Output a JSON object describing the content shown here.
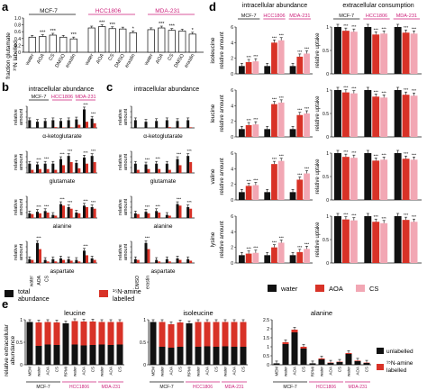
{
  "colors": {
    "total": "#111111",
    "labelled": "#d83227",
    "aoa": "#d83227",
    "cs": "#f2a7b4",
    "water": "#111111",
    "unlabelled": "#111111",
    "mcf": "#111111",
    "hcc": "#cc1f7a",
    "mda": "#cc1f7a"
  },
  "panels": {
    "a": {
      "letter": "a",
      "ylabel1": "fraction glutamate",
      "ylabel2": "¹⁵N labelled",
      "cells": [
        "MCF-7",
        "HCC1806",
        "MDA-231"
      ],
      "xticks": [
        "water",
        "AOA",
        "CS",
        "DMSO",
        "erastin"
      ],
      "ylim": [
        0,
        1.0
      ],
      "yticks": [
        "0",
        "0.2",
        "0.4",
        "0.6",
        "0.8",
        "1.0"
      ],
      "values": [
        [
          0.44,
          0.46,
          0.5,
          0.44,
          0.39
        ],
        [
          0.71,
          0.75,
          0.69,
          0.68,
          0.57
        ],
        [
          0.66,
          0.71,
          0.64,
          0.62,
          0.53
        ]
      ],
      "stars": [
        [
          "",
          "***",
          "***",
          "",
          "***"
        ],
        [
          "",
          "***",
          "***",
          "",
          "*"
        ],
        [
          "",
          "***",
          "***",
          "",
          "*"
        ]
      ]
    },
    "b": {
      "letter": "b",
      "title": "intracellular abundance",
      "cells": [
        "MCF-7",
        "HCC1806",
        "MDA-231"
      ],
      "ylabel": [
        "relative",
        "amount"
      ],
      "metabolites": [
        "α-ketoglutarate",
        "glutamate",
        "alanine",
        "aspartate"
      ],
      "xticks": [
        "water",
        "AOA",
        "CS"
      ]
    },
    "c": {
      "letter": "c",
      "title": "intracellular abundance",
      "ylabel": [
        "relative",
        "amount"
      ],
      "metabolites": [
        "α-ketoglutarate",
        "glutamate",
        "alanine",
        "aspartate"
      ],
      "xticks": [
        "DMSO",
        "erastin"
      ]
    },
    "d": {
      "letter": "d",
      "title_left": "intracellular abundance",
      "title_right": "extracellular consumption",
      "cells": [
        "MCF-7",
        "HCC1806",
        "MDA-231"
      ],
      "metabolites": [
        "isoleucine",
        "leucine",
        "valine",
        "lysine"
      ],
      "ylabel_left": "relative amount",
      "ylabel_right": "relative uptake"
    },
    "e": {
      "letter": "e",
      "ylabel": [
        "relative extracellular",
        "abundance"
      ],
      "titles": [
        "leucine",
        "isoleucine",
        "alanine"
      ],
      "xticks": [
        "MEM",
        "water",
        "AOA",
        "CS"
      ],
      "xticks_rpmi": [
        "RPMI",
        "water",
        "AOA",
        "CS"
      ],
      "cells": [
        "MCF-7",
        "HCC1806",
        "MDA-231"
      ]
    }
  },
  "legend_bc": {
    "total_line1": "total",
    "total_line2": "abundance",
    "labelled_line1": "¹⁵N-amine",
    "labelled_line2": "labelled"
  },
  "legend_d": {
    "water": "water",
    "aoa": "AOA",
    "cs": "CS"
  },
  "legend_e": {
    "unlabelled": "unlabelled",
    "labelled_line1": "¹⁵N-amine",
    "labelled_line2": "labelled"
  },
  "chart_data": [
    {
      "type": "bar",
      "panel": "a",
      "ylabel": "fraction glutamate ¹⁵N labelled",
      "categories": [
        "water",
        "AOA",
        "CS",
        "DMSO",
        "erastin"
      ],
      "ylim": [
        0,
        1.0
      ],
      "series": [
        {
          "name": "MCF-7",
          "values": [
            0.44,
            0.46,
            0.5,
            0.44,
            0.39
          ]
        },
        {
          "name": "HCC1806",
          "values": [
            0.71,
            0.75,
            0.69,
            0.68,
            0.57
          ]
        },
        {
          "name": "MDA-231",
          "values": [
            0.66,
            0.71,
            0.64,
            0.62,
            0.53
          ]
        }
      ]
    },
    {
      "type": "bar",
      "panel": "d",
      "metabolites": [
        "isoleucine",
        "leucine",
        "valine",
        "lysine"
      ],
      "intracellular": {
        "MCF-7": [
          [
            1.0,
            1.5,
            1.6
          ],
          [
            1.0,
            1.5,
            1.6
          ],
          [
            1.0,
            1.8,
            1.9
          ],
          [
            1.0,
            1.2,
            1.3
          ]
        ],
        "HCC1806": [
          [
            1.0,
            4.0,
            4.3
          ],
          [
            1.0,
            4.2,
            4.4
          ],
          [
            1.0,
            4.6,
            5.0
          ],
          [
            1.0,
            2.0,
            2.6
          ]
        ],
        "MDA-231": [
          [
            1.0,
            2.2,
            2.6
          ],
          [
            1.0,
            2.8,
            3.0
          ],
          [
            1.0,
            2.6,
            3.4
          ],
          [
            1.0,
            1.4,
            1.8
          ]
        ]
      },
      "extracellular": {
        "MCF-7": [
          [
            1.0,
            0.92,
            0.9
          ],
          [
            1.0,
            0.95,
            0.93
          ],
          [
            1.0,
            0.92,
            0.9
          ],
          [
            1.0,
            0.93,
            0.91
          ]
        ],
        "HCC1806": [
          [
            1.0,
            0.84,
            0.86
          ],
          [
            1.0,
            0.86,
            0.84
          ],
          [
            1.0,
            0.84,
            0.86
          ],
          [
            1.0,
            0.88,
            0.85
          ]
        ],
        "MDA-231": [
          [
            1.0,
            0.88,
            0.86
          ],
          [
            1.0,
            0.9,
            0.88
          ],
          [
            1.0,
            0.88,
            0.86
          ],
          [
            1.0,
            0.92,
            0.88
          ]
        ]
      }
    },
    {
      "type": "bar",
      "panel": "e",
      "note": "stacked: unlabelled + 15N labelled",
      "leucine": {
        "unlabelled": [
          0.95,
          0.42,
          0.45,
          0.44,
          0.92,
          0.45,
          0.43,
          0.44,
          0.45,
          0.44,
          0.45
        ],
        "labelled": [
          0.0,
          0.52,
          0.5,
          0.5,
          0.0,
          0.52,
          0.53,
          0.52,
          0.5,
          0.51,
          0.5
        ]
      },
      "isoleucine": {
        "unlabelled": [
          0.95,
          0.4,
          0.38,
          0.4,
          0.92,
          0.4,
          0.41,
          0.4,
          0.41,
          0.4,
          0.4
        ],
        "labelled": [
          0.0,
          0.55,
          0.52,
          0.54,
          0.0,
          0.55,
          0.54,
          0.55,
          0.54,
          0.55,
          0.55
        ]
      },
      "alanine": {
        "unlabelled": [
          0.08,
          1.15,
          1.8,
          0.9,
          0.08,
          0.3,
          0.1,
          0.15,
          0.6,
          0.2,
          0.1
        ],
        "labelled": [
          0.0,
          0.1,
          0.15,
          0.1,
          0.0,
          0.05,
          0.02,
          0.02,
          0.05,
          0.03,
          0.02
        ]
      }
    }
  ]
}
